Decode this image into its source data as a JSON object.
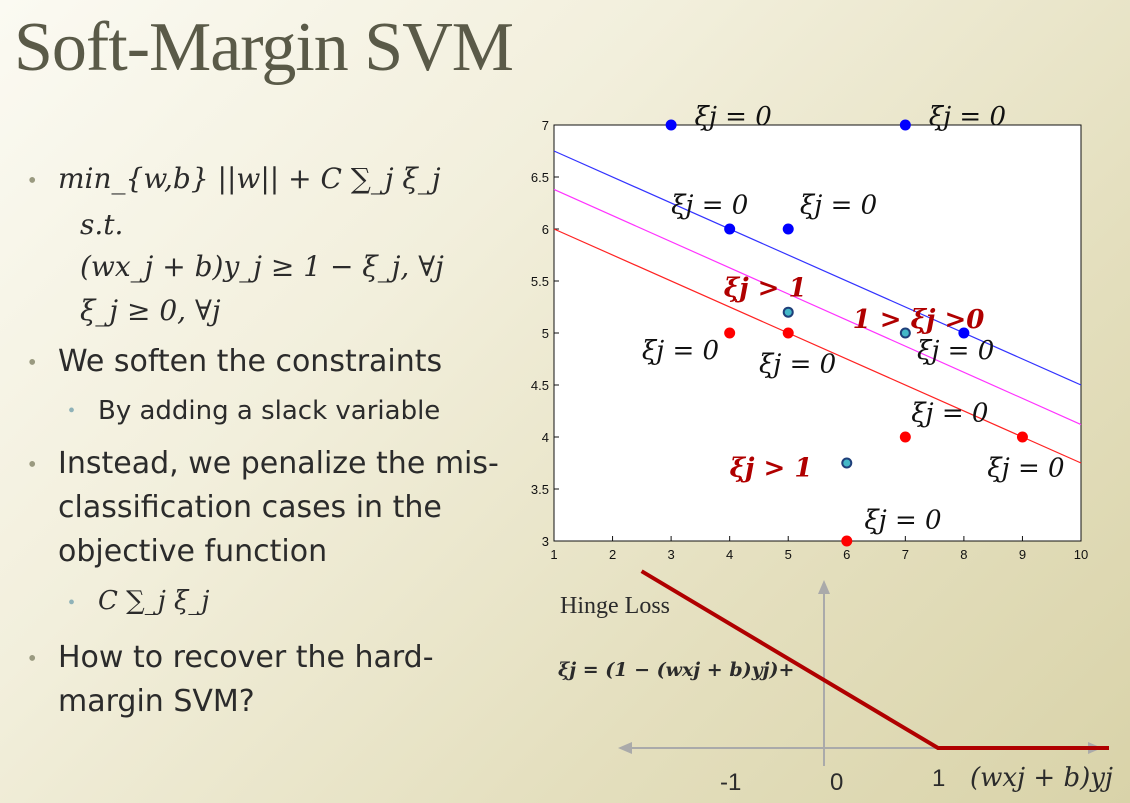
{
  "title": "Soft-Margin SVM",
  "bullets": {
    "objective": "min_{w,b} ||w|| + C ∑_j ξ_j",
    "st": "s.t.",
    "constraint1": "(wx_j + b)y_j ≥ 1 − ξ_j, ∀j",
    "constraint2": "ξ_j ≥ 0, ∀j",
    "b2": "We soften the constraints",
    "b2_sub": "By adding a slack variable",
    "b3_l1": "Instead, we penalize the mis-",
    "b3_l2": "classification cases in the",
    "b3_l3": "objective function",
    "b3_sub": "C ∑_j ξ_j",
    "b4_l1": "How to recover the hard-",
    "b4_l2": "margin SVM?"
  },
  "colors": {
    "blue_class": "#0000ff",
    "red_class": "#ff0000",
    "support_point": "#1e8aa8",
    "boundary_top": "#3333ff",
    "boundary_mid": "#ff33ff",
    "boundary_bot": "#ff2222",
    "hinge": "#b00000"
  },
  "chart_data": [
    {
      "type": "scatter",
      "xlim": [
        1,
        10
      ],
      "ylim": [
        3,
        7
      ],
      "x_ticks": [
        "1",
        "2",
        "3",
        "4",
        "5",
        "6",
        "7",
        "8",
        "9",
        "10"
      ],
      "y_ticks": [
        "3",
        "3.5",
        "4",
        "4.5",
        "5",
        "5.5",
        "6",
        "6.5",
        "7"
      ],
      "series": [
        {
          "class": "blue",
          "points": [
            [
              3,
              7
            ],
            [
              7,
              7
            ],
            [
              4,
              6
            ],
            [
              5,
              6
            ],
            [
              8,
              5
            ]
          ]
        },
        {
          "class": "red",
          "points": [
            [
              4,
              5
            ],
            [
              5,
              5
            ],
            [
              7,
              4
            ],
            [
              9,
              4
            ],
            [
              6,
              3
            ]
          ]
        },
        {
          "class": "misclassified",
          "points": [
            [
              5,
              5.2
            ],
            [
              7,
              5
            ],
            [
              6,
              3.75
            ]
          ]
        }
      ],
      "lines": [
        {
          "name": "margin-top",
          "x": [
            1,
            10
          ],
          "y": [
            6.75,
            4.5
          ]
        },
        {
          "name": "decision",
          "x": [
            1,
            10
          ],
          "y": [
            6.38,
            4.12
          ]
        },
        {
          "name": "margin-bottom",
          "x": [
            1,
            10
          ],
          "y": [
            6.0,
            3.75
          ]
        }
      ],
      "annotations": [
        {
          "text": "ξj = 0",
          "at": [
            3.4,
            7
          ]
        },
        {
          "text": "ξj = 0",
          "at": [
            7.4,
            7
          ]
        },
        {
          "text": "ξj = 0",
          "at": [
            3.0,
            6.15
          ]
        },
        {
          "text": "ξj = 0",
          "at": [
            5.2,
            6.15
          ]
        },
        {
          "text": "ξj > 1",
          "at": [
            3.9,
            5.35
          ],
          "highlight": true
        },
        {
          "text": "1 > ξj >0",
          "at": [
            6.1,
            5.05
          ],
          "highlight": true
        },
        {
          "text": "ξj = 0",
          "at": [
            7.2,
            4.75
          ]
        },
        {
          "text": "ξj = 0",
          "at": [
            2.5,
            4.75
          ]
        },
        {
          "text": "ξj = 0",
          "at": [
            4.5,
            4.62
          ]
        },
        {
          "text": "ξj = 0",
          "at": [
            7.1,
            4.15
          ]
        },
        {
          "text": "ξj > 1",
          "at": [
            4.0,
            3.62
          ],
          "highlight": true
        },
        {
          "text": "ξj = 0",
          "at": [
            8.4,
            3.62
          ]
        },
        {
          "text": "ξj = 0",
          "at": [
            6.3,
            3.12
          ]
        }
      ]
    },
    {
      "type": "line",
      "title": "Hinge Loss",
      "formula": "ξj = (1 − (wxj + b)yj)+",
      "x_ticks": [
        "-1",
        "0",
        "1"
      ],
      "xlabel": "(wxj + b)yj",
      "x": [
        -1.6,
        1,
        2.5
      ],
      "y": [
        2.6,
        0,
        0
      ]
    }
  ]
}
